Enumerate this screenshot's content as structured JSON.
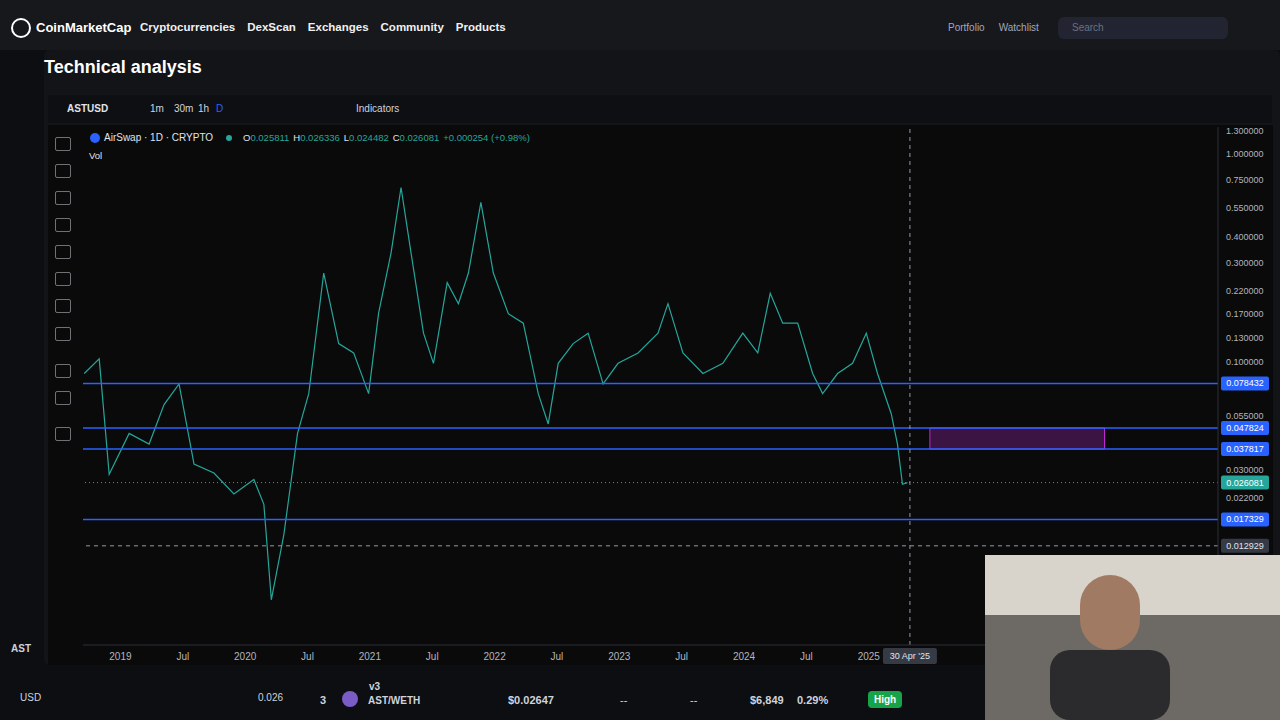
{
  "page": {
    "header": {
      "logo": "CoinMarketCap",
      "nav": [
        "Cryptocurrencies",
        "DexScan",
        "Exchanges",
        "Community",
        "Products"
      ],
      "right": [
        "Portfolio",
        "Watchlist"
      ],
      "search": "Search"
    },
    "modal": {
      "title": "Technical analysis",
      "symbol": "ASTUSD",
      "intervals": [
        "1m",
        "30m",
        "1h",
        "D"
      ],
      "indicators": "Indicators",
      "instrument": "AirSwap · 1D · CRYPTO",
      "ohlc": {
        "O": 0.025811,
        "H": 0.026336,
        "L": 0.024482,
        "C": 0.026081
      },
      "change": "+0.000254 (+0.98%)",
      "volume": "Vol"
    },
    "behind": {
      "asset": "AST",
      "currency": "USD",
      "price": "0.026"
    },
    "market_row": {
      "rank": "3",
      "version": "v3",
      "pair": "AST/WETH",
      "price": "$0.02647",
      "cols": [
        "--",
        "--"
      ],
      "volume": "$6,849",
      "share": "0.29%",
      "liquidity": "High"
    }
  },
  "chart_data": {
    "type": "line",
    "log": "y",
    "grid": false,
    "color": "#26a69a",
    "x": [
      2018.71,
      2018.83,
      2018.91,
      2019.07,
      2019.23,
      2019.35,
      2019.47,
      2019.59,
      2019.75,
      2019.91,
      2020.07,
      2020.15,
      2020.21,
      2020.31,
      2020.42,
      2020.51,
      2020.63,
      2020.75,
      2020.87,
      2020.99,
      2021.07,
      2021.17,
      2021.25,
      2021.33,
      2021.43,
      2021.51,
      2021.62,
      2021.71,
      2021.79,
      2021.89,
      2021.99,
      2022.11,
      2022.23,
      2022.35,
      2022.43,
      2022.51,
      2022.63,
      2022.75,
      2022.87,
      2022.99,
      2023.15,
      2023.31,
      2023.39,
      2023.51,
      2023.67,
      2023.83,
      2023.99,
      2024.11,
      2024.21,
      2024.31,
      2024.43,
      2024.55,
      2024.63,
      2024.75,
      2024.87,
      2024.98,
      2025.07,
      2025.18,
      2025.23,
      2025.27,
      2025.31
    ],
    "values": [
      0.0875,
      0.103,
      0.0286,
      0.045,
      0.04,
      0.062,
      0.078,
      0.032,
      0.029,
      0.023,
      0.027,
      0.0205,
      0.0071,
      0.0146,
      0.045,
      0.07,
      0.267,
      0.122,
      0.11,
      0.07,
      0.171,
      0.334,
      0.69,
      0.334,
      0.137,
      0.098,
      0.24,
      0.19,
      0.267,
      0.585,
      0.267,
      0.17,
      0.153,
      0.07,
      0.05,
      0.098,
      0.122,
      0.137,
      0.078,
      0.098,
      0.11,
      0.137,
      0.19,
      0.11,
      0.0875,
      0.098,
      0.137,
      0.11,
      0.213,
      0.153,
      0.153,
      0.0875,
      0.07,
      0.0875,
      0.098,
      0.137,
      0.0875,
      0.056,
      0.04,
      0.0256,
      0.026081
    ],
    "xlim": [
      2018.7,
      2027.8
    ],
    "xticks": [
      2019,
      {
        "value": 2019.5,
        "label": "Jul"
      },
      2020,
      {
        "value": 2020.5,
        "label": "Jul"
      },
      2021,
      {
        "value": 2021.5,
        "label": "Jul"
      },
      2022,
      {
        "value": 2022.5,
        "label": "Jul"
      },
      2023,
      {
        "value": 2023.5,
        "label": "Jul"
      },
      2024,
      {
        "value": 2024.5,
        "label": "Jul"
      },
      2025
    ],
    "ylim": [
      0.0043,
      1.35
    ],
    "yticks": [
      {
        "value": 1.3,
        "label": "1.300000"
      },
      {
        "value": 1.0,
        "label": "1.000000"
      },
      {
        "value": 0.75,
        "label": "0.750000"
      },
      {
        "value": 0.55,
        "label": "0.550000"
      },
      {
        "value": 0.4,
        "label": "0.400000"
      },
      {
        "value": 0.3,
        "label": "0.300000"
      },
      {
        "value": 0.22,
        "label": "0.220000"
      },
      {
        "value": 0.17,
        "label": "0.170000"
      },
      {
        "value": 0.13,
        "label": "0.130000"
      },
      {
        "value": 0.1,
        "label": "0.100000"
      },
      {
        "value": 0.055,
        "label": "0.055000"
      },
      {
        "value": 0.03,
        "label": "0.030000"
      },
      {
        "value": 0.022,
        "label": "0.022000"
      }
    ],
    "levels": [
      0.078432,
      0.047824,
      0.037817,
      0.017329
    ],
    "last_price": 0.026081,
    "zone": {
      "x": [
        2025.49,
        2026.89
      ],
      "y": [
        0.037817,
        0.047824
      ]
    },
    "crosshair": {
      "x": 2025.33,
      "y": 0.012929,
      "date_label": "30 Apr '25"
    }
  }
}
